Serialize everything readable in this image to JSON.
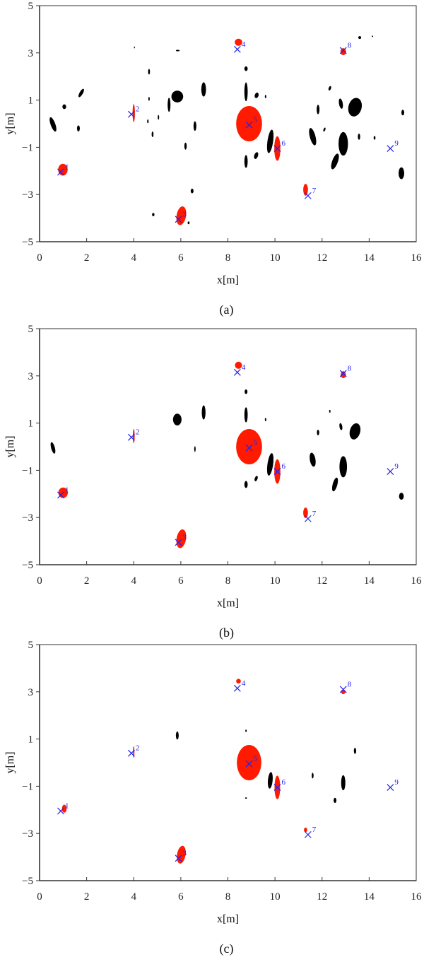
{
  "chart_data": [
    {
      "type": "scatter",
      "panel_label": "(a)",
      "xlabel": "x[m]",
      "ylabel": "y[m]",
      "xlim": [
        0,
        16
      ],
      "ylim": [
        -5,
        5
      ],
      "xticks": [
        "0",
        "2",
        "4",
        "6",
        "8",
        "10",
        "12",
        "14",
        "16"
      ],
      "yticks": [
        "−5",
        "−3",
        "−1",
        "1",
        "3",
        "5"
      ],
      "grid": false,
      "colors": {
        "targets": "#ff1a00",
        "clutter": "#000000",
        "markers": "#2222ee"
      },
      "markers": [
        {
          "label": "1",
          "x": 0.9,
          "y": -2.05
        },
        {
          "label": "2",
          "x": 3.9,
          "y": 0.4
        },
        {
          "label": "3",
          "x": 5.9,
          "y": -4.05
        },
        {
          "label": "4",
          "x": 8.4,
          "y": 3.15
        },
        {
          "label": "5",
          "x": 8.9,
          "y": -0.05
        },
        {
          "label": "6",
          "x": 10.1,
          "y": -1.05
        },
        {
          "label": "7",
          "x": 11.4,
          "y": -3.05
        },
        {
          "label": "8",
          "x": 12.9,
          "y": 3.1
        },
        {
          "label": "9",
          "x": 14.9,
          "y": -1.05
        }
      ],
      "red_regions": [
        [
          0.99,
          -1.95,
          0.2,
          0.25,
          0
        ],
        [
          4.0,
          0.45,
          0.05,
          0.38,
          0
        ],
        [
          6.02,
          -3.9,
          0.2,
          0.4,
          10
        ],
        [
          8.45,
          3.45,
          0.16,
          0.15,
          0
        ],
        [
          8.9,
          0.0,
          0.55,
          0.75,
          0
        ],
        [
          10.1,
          -1.05,
          0.13,
          0.52,
          0
        ],
        [
          11.3,
          -2.8,
          0.1,
          0.25,
          0
        ],
        [
          12.9,
          3.05,
          0.12,
          0.15,
          0
        ]
      ],
      "black_regions": [
        [
          0.57,
          -0.03,
          0.1,
          0.32,
          -20
        ],
        [
          1.05,
          0.72,
          0.08,
          0.1,
          0
        ],
        [
          1.77,
          1.3,
          0.07,
          0.2,
          30
        ],
        [
          1.65,
          -0.2,
          0.06,
          0.13,
          0
        ],
        [
          4.03,
          3.23,
          0.02,
          0.04,
          0
        ],
        [
          4.65,
          2.2,
          0.04,
          0.12,
          0
        ],
        [
          4.65,
          1.05,
          0.03,
          0.08,
          0
        ],
        [
          4.6,
          0.1,
          0.03,
          0.08,
          0
        ],
        [
          4.8,
          -0.45,
          0.04,
          0.12,
          0
        ],
        [
          5.05,
          0.27,
          0.03,
          0.1,
          0
        ],
        [
          5.85,
          1.15,
          0.25,
          0.25,
          0
        ],
        [
          5.5,
          0.8,
          0.06,
          0.3,
          0
        ],
        [
          5.87,
          3.1,
          0.08,
          0.03,
          0
        ],
        [
          6.97,
          1.45,
          0.1,
          0.3,
          0
        ],
        [
          6.6,
          -0.1,
          0.06,
          0.2,
          0
        ],
        [
          6.2,
          -0.95,
          0.05,
          0.15,
          0
        ],
        [
          6.48,
          -2.85,
          0.06,
          0.1,
          0
        ],
        [
          4.83,
          -3.85,
          0.05,
          0.07,
          0
        ],
        [
          6.33,
          -4.2,
          0.04,
          0.06,
          0
        ],
        [
          8.77,
          2.33,
          0.07,
          0.1,
          0
        ],
        [
          8.77,
          1.35,
          0.07,
          0.4,
          0
        ],
        [
          9.22,
          1.2,
          0.08,
          0.12,
          20
        ],
        [
          9.6,
          1.15,
          0.03,
          0.07,
          0
        ],
        [
          9.8,
          -0.75,
          0.12,
          0.5,
          8
        ],
        [
          8.77,
          -1.6,
          0.07,
          0.27,
          0
        ],
        [
          9.2,
          -1.35,
          0.08,
          0.15,
          20
        ],
        [
          11.83,
          0.6,
          0.06,
          0.2,
          0
        ],
        [
          11.6,
          -0.55,
          0.12,
          0.38,
          -15
        ],
        [
          12.1,
          -0.25,
          0.04,
          0.09,
          20
        ],
        [
          12.33,
          1.5,
          0.05,
          0.1,
          20
        ],
        [
          12.8,
          0.85,
          0.08,
          0.22,
          -10
        ],
        [
          13.4,
          0.7,
          0.28,
          0.4,
          15
        ],
        [
          12.9,
          -0.85,
          0.2,
          0.5,
          0
        ],
        [
          12.55,
          -1.6,
          0.12,
          0.35,
          20
        ],
        [
          13.57,
          -0.55,
          0.05,
          0.13,
          0
        ],
        [
          14.23,
          -0.6,
          0.04,
          0.08,
          0
        ],
        [
          15.43,
          0.47,
          0.06,
          0.12,
          0
        ],
        [
          15.37,
          -2.1,
          0.12,
          0.25,
          0
        ],
        [
          13.6,
          3.65,
          0.06,
          0.06,
          0
        ],
        [
          14.14,
          3.7,
          0.03,
          0.03,
          0
        ]
      ]
    },
    {
      "type": "scatter",
      "panel_label": "(b)",
      "xlabel": "x[m]",
      "ylabel": "y[m]",
      "xlim": [
        0,
        16
      ],
      "ylim": [
        -5,
        5
      ],
      "xticks": [
        "0",
        "2",
        "4",
        "6",
        "8",
        "10",
        "12",
        "14",
        "16"
      ],
      "yticks": [
        "−5",
        "−3",
        "−1",
        "1",
        "3",
        "5"
      ],
      "grid": false,
      "colors": {
        "targets": "#ff1a00",
        "clutter": "#000000",
        "markers": "#2222ee"
      },
      "markers": [
        {
          "label": "1",
          "x": 0.9,
          "y": -2.05
        },
        {
          "label": "2",
          "x": 3.9,
          "y": 0.4
        },
        {
          "label": "3",
          "x": 5.9,
          "y": -4.05
        },
        {
          "label": "4",
          "x": 8.4,
          "y": 3.15
        },
        {
          "label": "5",
          "x": 8.9,
          "y": -0.05
        },
        {
          "label": "6",
          "x": 10.1,
          "y": -1.05
        },
        {
          "label": "7",
          "x": 11.4,
          "y": -3.05
        },
        {
          "label": "8",
          "x": 12.9,
          "y": 3.1
        },
        {
          "label": "9",
          "x": 14.9,
          "y": -1.05
        }
      ],
      "red_regions": [
        [
          1.0,
          -1.95,
          0.2,
          0.22,
          0
        ],
        [
          4.0,
          0.45,
          0.04,
          0.3,
          0
        ],
        [
          6.02,
          -3.9,
          0.2,
          0.4,
          10
        ],
        [
          8.45,
          3.45,
          0.15,
          0.15,
          0
        ],
        [
          8.9,
          0.0,
          0.55,
          0.75,
          0
        ],
        [
          10.1,
          -1.05,
          0.13,
          0.52,
          0
        ],
        [
          11.3,
          -2.8,
          0.1,
          0.22,
          0
        ],
        [
          12.9,
          3.05,
          0.11,
          0.15,
          0
        ]
      ],
      "black_regions": [
        [
          0.57,
          -0.05,
          0.08,
          0.25,
          -15
        ],
        [
          5.85,
          1.15,
          0.18,
          0.25,
          0
        ],
        [
          6.97,
          1.45,
          0.08,
          0.3,
          0
        ],
        [
          6.6,
          -0.1,
          0.03,
          0.12,
          0
        ],
        [
          8.77,
          2.33,
          0.06,
          0.1,
          0
        ],
        [
          8.77,
          1.35,
          0.07,
          0.32,
          0
        ],
        [
          9.6,
          1.15,
          0.03,
          0.07,
          0
        ],
        [
          9.8,
          -0.75,
          0.12,
          0.48,
          8
        ],
        [
          8.77,
          -1.6,
          0.07,
          0.15,
          0
        ],
        [
          9.2,
          -1.35,
          0.06,
          0.12,
          20
        ],
        [
          11.83,
          0.6,
          0.05,
          0.12,
          0
        ],
        [
          11.6,
          -0.55,
          0.12,
          0.3,
          -10
        ],
        [
          12.33,
          1.5,
          0.03,
          0.06,
          0
        ],
        [
          12.8,
          0.85,
          0.06,
          0.15,
          -10
        ],
        [
          13.4,
          0.65,
          0.22,
          0.35,
          15
        ],
        [
          12.9,
          -0.85,
          0.16,
          0.45,
          0
        ],
        [
          12.55,
          -1.6,
          0.1,
          0.3,
          15
        ],
        [
          15.37,
          -2.1,
          0.1,
          0.15,
          0
        ]
      ]
    },
    {
      "type": "scatter",
      "panel_label": "(c)",
      "xlabel": "x[m]",
      "ylabel": "y[m]",
      "xlim": [
        0,
        16
      ],
      "ylim": [
        -5,
        5
      ],
      "xticks": [
        "0",
        "2",
        "4",
        "6",
        "8",
        "10",
        "12",
        "14",
        "16"
      ],
      "yticks": [
        "−5",
        "−3",
        "−1",
        "1",
        "3",
        "5"
      ],
      "grid": false,
      "colors": {
        "targets": "#ff1a00",
        "clutter": "#000000",
        "markers": "#2222ee"
      },
      "markers": [
        {
          "label": "1",
          "x": 0.9,
          "y": -2.05
        },
        {
          "label": "2",
          "x": 3.9,
          "y": 0.4
        },
        {
          "label": "3",
          "x": 5.9,
          "y": -4.05
        },
        {
          "label": "4",
          "x": 8.4,
          "y": 3.15
        },
        {
          "label": "5",
          "x": 8.9,
          "y": -0.05
        },
        {
          "label": "6",
          "x": 10.1,
          "y": -1.05
        },
        {
          "label": "7",
          "x": 11.4,
          "y": -3.05
        },
        {
          "label": "8",
          "x": 12.9,
          "y": 3.1
        },
        {
          "label": "9",
          "x": 14.9,
          "y": -1.05
        }
      ],
      "red_regions": [
        [
          1.05,
          -1.95,
          0.1,
          0.17,
          0
        ],
        [
          4.0,
          0.45,
          0.03,
          0.25,
          0
        ],
        [
          6.02,
          -3.9,
          0.18,
          0.38,
          10
        ],
        [
          8.45,
          3.45,
          0.1,
          0.1,
          0
        ],
        [
          8.9,
          0.0,
          0.52,
          0.75,
          0
        ],
        [
          10.1,
          -1.05,
          0.12,
          0.5,
          0
        ],
        [
          11.3,
          -2.85,
          0.07,
          0.1,
          0
        ],
        [
          12.9,
          3.0,
          0.09,
          0.1,
          0
        ]
      ],
      "black_regions": [
        [
          5.85,
          1.15,
          0.06,
          0.17,
          0
        ],
        [
          8.77,
          1.35,
          0.03,
          0.05,
          0
        ],
        [
          9.8,
          -0.75,
          0.1,
          0.35,
          5
        ],
        [
          11.6,
          -0.55,
          0.04,
          0.12,
          0
        ],
        [
          12.9,
          -0.85,
          0.09,
          0.32,
          0
        ],
        [
          12.55,
          -1.6,
          0.06,
          0.11,
          0
        ],
        [
          13.4,
          0.5,
          0.05,
          0.13,
          0
        ],
        [
          8.77,
          -1.5,
          0.04,
          0.03,
          0
        ]
      ]
    }
  ]
}
